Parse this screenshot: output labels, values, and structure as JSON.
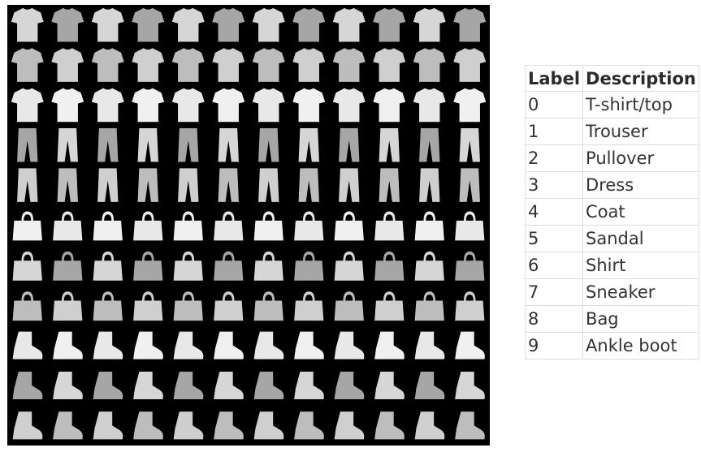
{
  "colors": {
    "grid_background": "#000000",
    "item_fill": "#d0d0d0",
    "table_text": "#333333",
    "table_border": "#dddddd"
  },
  "grid": {
    "rows": [
      "T-shirt/top",
      "T-shirt/top",
      "T-shirt/top",
      "Trouser",
      "Trouser",
      "Bag",
      "Bag",
      "Bag",
      "Ankle boot",
      "Ankle boot",
      "Ankle boot"
    ],
    "columns_per_row": 12
  },
  "table": {
    "headers": {
      "label": "Label",
      "description": "Description"
    },
    "rows": [
      {
        "label": "0",
        "description": "T-shirt/top"
      },
      {
        "label": "1",
        "description": "Trouser"
      },
      {
        "label": "2",
        "description": "Pullover"
      },
      {
        "label": "3",
        "description": "Dress"
      },
      {
        "label": "4",
        "description": "Coat"
      },
      {
        "label": "5",
        "description": "Sandal"
      },
      {
        "label": "6",
        "description": "Shirt"
      },
      {
        "label": "7",
        "description": "Sneaker"
      },
      {
        "label": "8",
        "description": "Bag"
      },
      {
        "label": "9",
        "description": "Ankle boot"
      }
    ]
  }
}
